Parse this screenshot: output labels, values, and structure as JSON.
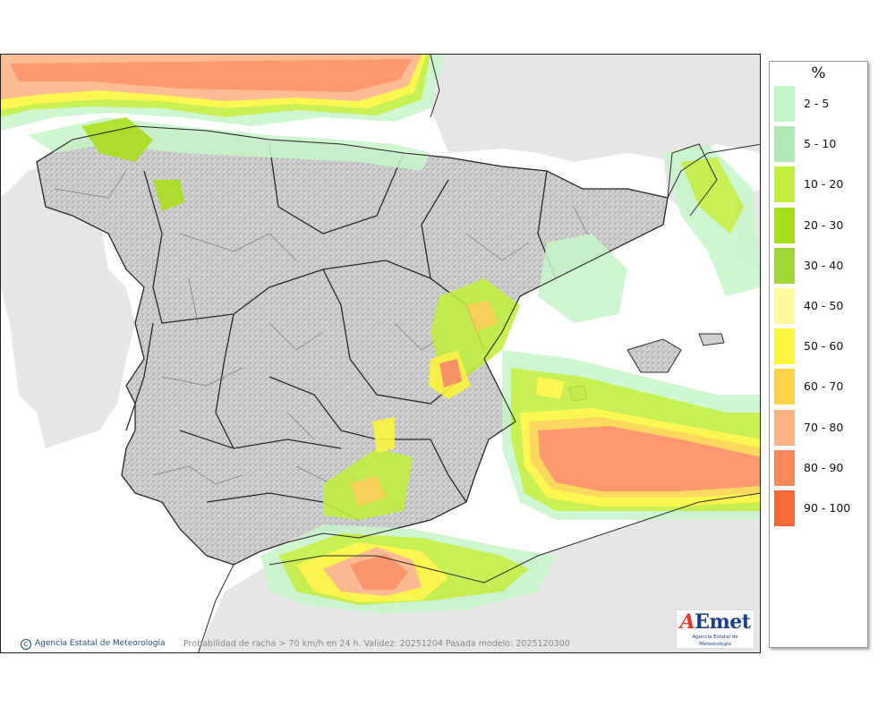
{
  "map": {
    "credit": "Agencia Estatal de Meteorología",
    "credit_symbol": "C",
    "caption": "Probabilidad de racha > 70 km/h en 24 h. Validez: 20251204 Pasada modelo: 2025120300",
    "logo_text": "AEmet",
    "logo_sub": "Agencia Estatal de Meteorología"
  },
  "legend": {
    "title": "%",
    "items": [
      {
        "label": "2 - 5",
        "color": "#c4f5c8"
      },
      {
        "label": "5 - 10",
        "color": "#b2e8b6"
      },
      {
        "label": "10 - 20",
        "color": "#c2ef3e"
      },
      {
        "label": "20 - 30",
        "color": "#a8e019"
      },
      {
        "label": "30 - 40",
        "color": "#a0d83a"
      },
      {
        "label": "40 - 50",
        "color": "#fdfb9e"
      },
      {
        "label": "50 - 60",
        "color": "#fdf63a"
      },
      {
        "label": "60 - 70",
        "color": "#fdd34a"
      },
      {
        "label": "70 - 80",
        "color": "#fdb386"
      },
      {
        "label": "80 - 90",
        "color": "#fd8a5c"
      },
      {
        "label": "90 - 100",
        "color": "#fd6a3a"
      }
    ]
  },
  "colors": {
    "land": "#cfcfcf",
    "land_other": "#e6e6e6",
    "sea": "#ffffff",
    "border": "#2a2a2a"
  }
}
